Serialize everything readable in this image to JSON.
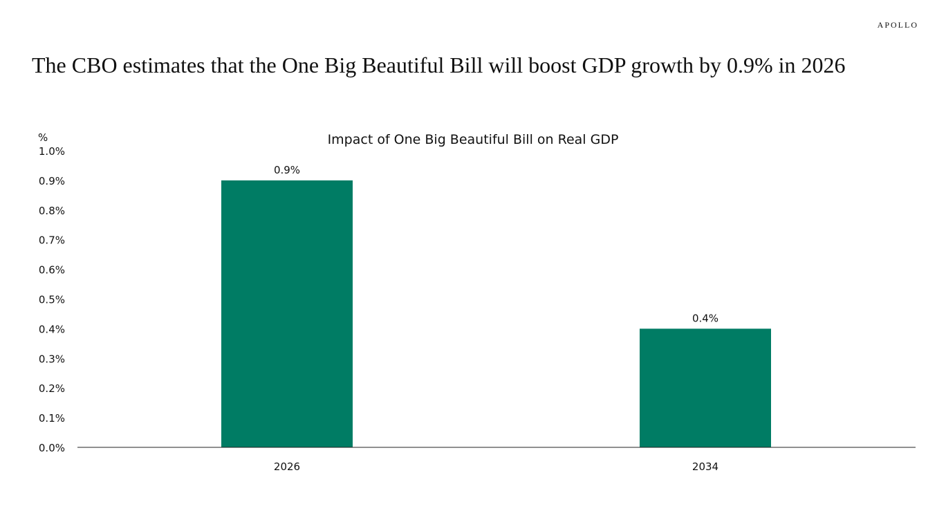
{
  "logo": "APOLLO",
  "title": "The CBO estimates that the One Big Beautiful Bill will boost GDP growth by 0.9% in 2026",
  "chart_data": {
    "type": "bar",
    "title": "Impact of One Big Beautiful Bill on Real GDP",
    "ylabel": "%",
    "xlabel": "",
    "categories": [
      "2026",
      "2034"
    ],
    "values": [
      0.9,
      0.4
    ],
    "data_labels": [
      "0.9%",
      "0.4%"
    ],
    "ylim": [
      0,
      1.0
    ],
    "yticks": [
      "0.0%",
      "0.1%",
      "0.2%",
      "0.3%",
      "0.4%",
      "0.5%",
      "0.6%",
      "0.7%",
      "0.8%",
      "0.9%",
      "1.0%"
    ],
    "grid": false,
    "legend": "none",
    "bar_color": "#007C64"
  }
}
